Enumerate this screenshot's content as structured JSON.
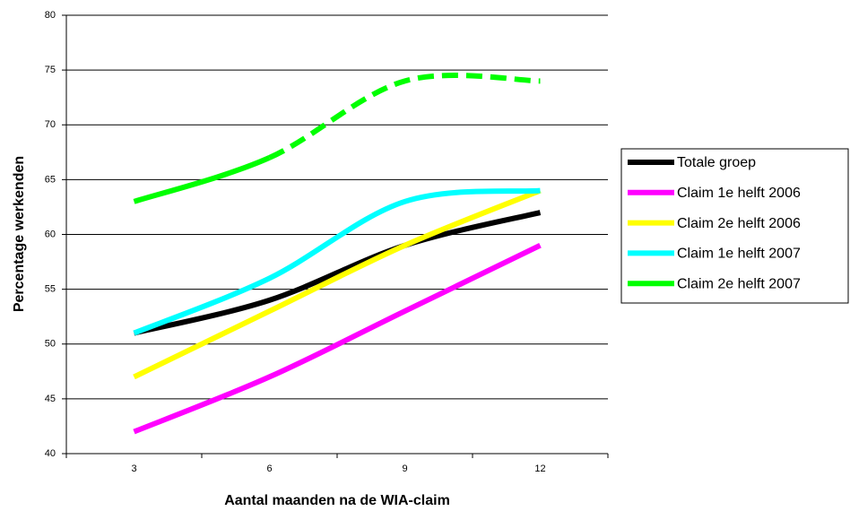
{
  "chart_data": {
    "type": "line",
    "x_label": "Aantal maanden na de WIA-claim",
    "y_label": "Percentage werkenden",
    "categories": [
      "3",
      "6",
      "9",
      "12"
    ],
    "series": [
      {
        "name": "Totale groep",
        "color": "#000000",
        "values": [
          51,
          54,
          59,
          62
        ]
      },
      {
        "name": "Claim 1e helft 2006",
        "color": "#ff00ff",
        "values": [
          42,
          47,
          53,
          59
        ]
      },
      {
        "name": "Claim 2e helft 2006",
        "color": "#ffff00",
        "values": [
          47,
          53,
          59,
          64
        ]
      },
      {
        "name": "Claim 1e helft 2007",
        "color": "#00ffff",
        "values": [
          51,
          56,
          63,
          64
        ]
      },
      {
        "name": "Claim 2e helft 2007",
        "color": "#00ff00",
        "values": [
          63,
          67,
          74,
          74
        ],
        "dash_from": 1
      }
    ],
    "ylim": [
      40,
      80
    ],
    "yticks": [
      40,
      45,
      50,
      55,
      60,
      65,
      70,
      75,
      80
    ],
    "grid": true,
    "smooth": true,
    "legend": "right"
  }
}
